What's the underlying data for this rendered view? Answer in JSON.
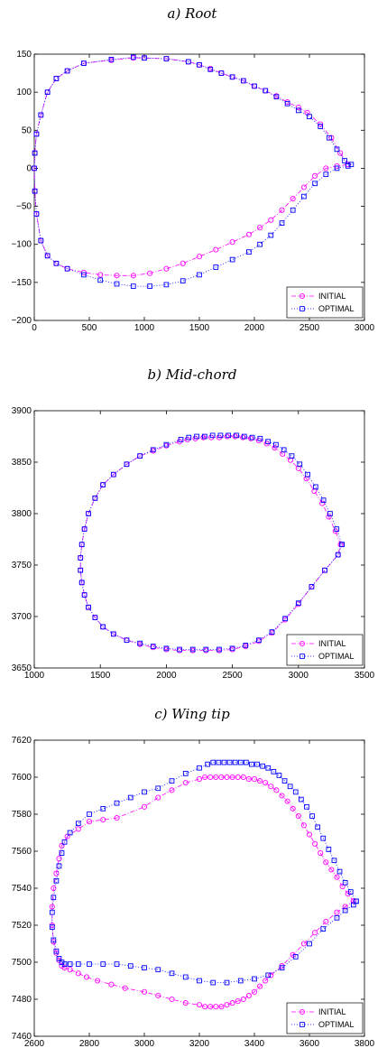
{
  "chart_data": [
    {
      "type": "line",
      "title": "a) Root",
      "xlim": [
        0,
        3000
      ],
      "ylim": [
        -200,
        150
      ],
      "xticks": [
        "0",
        "500",
        "1000",
        "1500",
        "2000",
        "2500",
        "3000"
      ],
      "yticks": [
        "150",
        "100",
        "50",
        "0",
        "−50",
        "−100",
        "−150",
        "−200"
      ],
      "grid": false,
      "legend_position": "bottom-right",
      "legend": [
        "INITIAL",
        "OPTIMAL"
      ],
      "series": [
        {
          "name": "INITIAL",
          "color": "#ff00ff",
          "marker": "circle",
          "x": [
            2850,
            2780,
            2700,
            2600,
            2480,
            2400,
            2300,
            2200,
            2100,
            2000,
            1900,
            1800,
            1700,
            1600,
            1500,
            1400,
            1200,
            1000,
            900,
            700,
            450,
            300,
            200,
            120,
            60,
            20,
            5,
            0,
            5,
            20,
            60,
            120,
            200,
            300,
            450,
            600,
            750,
            900,
            1050,
            1200,
            1350,
            1500,
            1650,
            1800,
            1950,
            2050,
            2150,
            2250,
            2350,
            2450,
            2550,
            2650,
            2750,
            2850
          ],
          "y": [
            5,
            20,
            40,
            58,
            73,
            80,
            87,
            95,
            102,
            108,
            115,
            120,
            125,
            131,
            136,
            140,
            144,
            145,
            145,
            142,
            138,
            128,
            118,
            100,
            70,
            45,
            20,
            0,
            -30,
            -60,
            -95,
            -115,
            -125,
            -132,
            -137,
            -140,
            -141,
            -141,
            -138,
            -132,
            -125,
            -116,
            -107,
            -97,
            -87,
            -78,
            -68,
            -55,
            -40,
            -25,
            -10,
            0,
            3,
            5
          ]
        },
        {
          "name": "OPTIMAL",
          "color": "#0000ff",
          "marker": "square",
          "x": [
            2880,
            2820,
            2750,
            2680,
            2600,
            2500,
            2400,
            2300,
            2200,
            2100,
            2000,
            1900,
            1800,
            1700,
            1600,
            1500,
            1400,
            1200,
            1000,
            900,
            700,
            450,
            300,
            200,
            120,
            60,
            20,
            5,
            0,
            5,
            20,
            60,
            120,
            200,
            300,
            450,
            600,
            750,
            900,
            1050,
            1200,
            1350,
            1500,
            1650,
            1800,
            1950,
            2050,
            2150,
            2250,
            2350,
            2450,
            2550,
            2650,
            2750,
            2850
          ],
          "y": [
            5,
            10,
            25,
            40,
            55,
            68,
            76,
            85,
            94,
            102,
            108,
            115,
            120,
            125,
            130,
            136,
            140,
            144,
            145,
            146,
            143,
            138,
            128,
            118,
            100,
            70,
            45,
            20,
            0,
            -30,
            -60,
            -95,
            -115,
            -125,
            -132,
            -140,
            -147,
            -152,
            -155,
            -155,
            -153,
            -148,
            -140,
            -130,
            -120,
            -110,
            -100,
            -88,
            -72,
            -55,
            -37,
            -20,
            -8,
            0,
            3
          ]
        }
      ]
    },
    {
      "type": "line",
      "title": "b) Mid-chord",
      "xlim": [
        1000,
        3500
      ],
      "ylim": [
        3650,
        3900
      ],
      "xticks": [
        "1000",
        "1500",
        "2000",
        "2500",
        "3000",
        "3500"
      ],
      "yticks": [
        "3900",
        "3850",
        "3800",
        "3750",
        "3700",
        "3650"
      ],
      "grid": false,
      "legend_position": "bottom-right",
      "legend": [
        "INITIAL",
        "OPTIMAL"
      ],
      "series": [
        {
          "name": "INITIAL",
          "color": "#ff00ff",
          "marker": "circle",
          "x": [
            3320,
            3280,
            3230,
            3180,
            3120,
            3060,
            3000,
            2940,
            2880,
            2820,
            2760,
            2700,
            2640,
            2580,
            2520,
            2460,
            2400,
            2340,
            2280,
            2220,
            2160,
            2100,
            2000,
            1900,
            1800,
            1700,
            1600,
            1520,
            1460,
            1410,
            1380,
            1360,
            1350,
            1350,
            1360,
            1380,
            1410,
            1460,
            1520,
            1600,
            1700,
            1800,
            1900,
            2000,
            2100,
            2200,
            2300,
            2400,
            2500,
            2600,
            2700,
            2800,
            2900,
            3000,
            3100,
            3200,
            3300,
            3320
          ],
          "y": [
            3770,
            3783,
            3797,
            3810,
            3822,
            3834,
            3844,
            3852,
            3858,
            3864,
            3868,
            3871,
            3873,
            3874,
            3875,
            3875,
            3874,
            3874,
            3874,
            3873,
            3872,
            3870,
            3866,
            3861,
            3856,
            3848,
            3838,
            3828,
            3815,
            3800,
            3785,
            3770,
            3757,
            3745,
            3733,
            3721,
            3709,
            3699,
            3690,
            3683,
            3677,
            3673,
            3670,
            3668,
            3667,
            3667,
            3667,
            3667,
            3668,
            3671,
            3676,
            3684,
            3697,
            3712,
            3729,
            3745,
            3760,
            3770
          ]
        },
        {
          "name": "OPTIMAL",
          "color": "#0000ff",
          "marker": "square",
          "x": [
            3330,
            3290,
            3240,
            3190,
            3130,
            3070,
            3010,
            2950,
            2890,
            2830,
            2770,
            2710,
            2650,
            2590,
            2530,
            2470,
            2410,
            2350,
            2290,
            2230,
            2170,
            2110,
            2000,
            1900,
            1800,
            1700,
            1600,
            1520,
            1460,
            1410,
            1380,
            1360,
            1350,
            1350,
            1360,
            1380,
            1410,
            1460,
            1520,
            1600,
            1700,
            1800,
            1900,
            2000,
            2100,
            2200,
            2300,
            2400,
            2500,
            2600,
            2700,
            2800,
            2900,
            3000,
            3100,
            3200,
            3300,
            3330
          ],
          "y": [
            3770,
            3785,
            3800,
            3813,
            3826,
            3838,
            3848,
            3856,
            3862,
            3867,
            3870,
            3873,
            3874,
            3875,
            3876,
            3876,
            3876,
            3876,
            3875,
            3875,
            3874,
            3872,
            3867,
            3862,
            3856,
            3848,
            3838,
            3828,
            3815,
            3800,
            3785,
            3770,
            3757,
            3745,
            3733,
            3721,
            3709,
            3699,
            3690,
            3683,
            3677,
            3674,
            3671,
            3669,
            3668,
            3668,
            3668,
            3668,
            3669,
            3672,
            3677,
            3685,
            3698,
            3713,
            3729,
            3745,
            3760,
            3770
          ]
        }
      ]
    },
    {
      "type": "line",
      "title": "c) Wing tip",
      "xlim": [
        2600,
        3800
      ],
      "ylim": [
        7460,
        7620
      ],
      "xticks": [
        "2600",
        "2800",
        "3000",
        "3200",
        "3400",
        "3600",
        "3800"
      ],
      "yticks": [
        "7620",
        "7600",
        "7580",
        "7560",
        "7540",
        "7520",
        "7500",
        "7480",
        "7460"
      ],
      "grid": false,
      "legend_position": "bottom-right",
      "legend": [
        "INITIAL",
        "OPTIMAL"
      ],
      "series": [
        {
          "name": "INITIAL",
          "color": "#ff00ff",
          "marker": "circle",
          "x": [
            3760,
            3740,
            3720,
            3700,
            3680,
            3660,
            3640,
            3620,
            3600,
            3580,
            3560,
            3540,
            3520,
            3500,
            3480,
            3460,
            3440,
            3420,
            3400,
            3380,
            3360,
            3340,
            3320,
            3300,
            3280,
            3260,
            3240,
            3220,
            3200,
            3150,
            3100,
            3050,
            3000,
            2900,
            2850,
            2800,
            2760,
            2720,
            2700,
            2690,
            2680,
            2670,
            2665,
            2665,
            2670,
            2680,
            2690,
            2700,
            2710,
            2730,
            2760,
            2790,
            2830,
            2880,
            2930,
            3000,
            3050,
            3100,
            3150,
            3200,
            3220,
            3240,
            3260,
            3280,
            3300,
            3320,
            3340,
            3360,
            3380,
            3400,
            3420,
            3440,
            3460,
            3500,
            3540,
            3580,
            3620,
            3660,
            3700,
            3730,
            3760
          ],
          "y": [
            7533,
            7537,
            7541,
            7546,
            7550,
            7554,
            7559,
            7564,
            7569,
            7574,
            7579,
            7583,
            7587,
            7590,
            7593,
            7595,
            7597,
            7598,
            7599,
            7599,
            7600,
            7600,
            7600,
            7600,
            7600,
            7600,
            7600,
            7600,
            7599,
            7597,
            7593,
            7589,
            7584,
            7578,
            7577,
            7576,
            7572,
            7568,
            7563,
            7556,
            7548,
            7540,
            7530,
            7520,
            7511,
            7505,
            7501,
            7498,
            7497,
            7496,
            7494,
            7492,
            7490,
            7488,
            7486,
            7484,
            7482,
            7480,
            7478,
            7477,
            7476,
            7476,
            7476,
            7476,
            7477,
            7478,
            7479,
            7480,
            7482,
            7484,
            7487,
            7490,
            7493,
            7498,
            7504,
            7510,
            7516,
            7522,
            7527,
            7530,
            7533
          ]
        },
        {
          "name": "OPTIMAL",
          "color": "#0000ff",
          "marker": "square",
          "x": [
            3770,
            3750,
            3730,
            3710,
            3690,
            3670,
            3650,
            3630,
            3610,
            3590,
            3570,
            3550,
            3530,
            3510,
            3490,
            3470,
            3450,
            3430,
            3410,
            3390,
            3370,
            3350,
            3330,
            3310,
            3290,
            3270,
            3250,
            3230,
            3200,
            3150,
            3100,
            3050,
            3000,
            2950,
            2900,
            2850,
            2800,
            2760,
            2730,
            2710,
            2700,
            2690,
            2680,
            2670,
            2665,
            2665,
            2670,
            2680,
            2690,
            2700,
            2710,
            2730,
            2760,
            2800,
            2850,
            2900,
            2950,
            3000,
            3050,
            3100,
            3150,
            3200,
            3250,
            3300,
            3350,
            3400,
            3450,
            3500,
            3550,
            3600,
            3650,
            3700,
            3730,
            3760,
            3770
          ],
          "y": [
            7533,
            7538,
            7543,
            7549,
            7555,
            7561,
            7567,
            7573,
            7579,
            7584,
            7588,
            7592,
            7595,
            7598,
            7601,
            7603,
            7605,
            7606,
            7607,
            7607,
            7608,
            7608,
            7608,
            7608,
            7608,
            7608,
            7608,
            7607,
            7605,
            7602,
            7598,
            7594,
            7592,
            7589,
            7586,
            7583,
            7580,
            7575,
            7570,
            7565,
            7559,
            7552,
            7544,
            7535,
            7527,
            7519,
            7512,
            7506,
            7502,
            7500,
            7499,
            7499,
            7499,
            7499,
            7499,
            7499,
            7498,
            7497,
            7496,
            7494,
            7492,
            7490,
            7489,
            7489,
            7490,
            7491,
            7493,
            7497,
            7503,
            7510,
            7518,
            7524,
            7528,
            7531,
            7533
          ]
        }
      ]
    }
  ]
}
